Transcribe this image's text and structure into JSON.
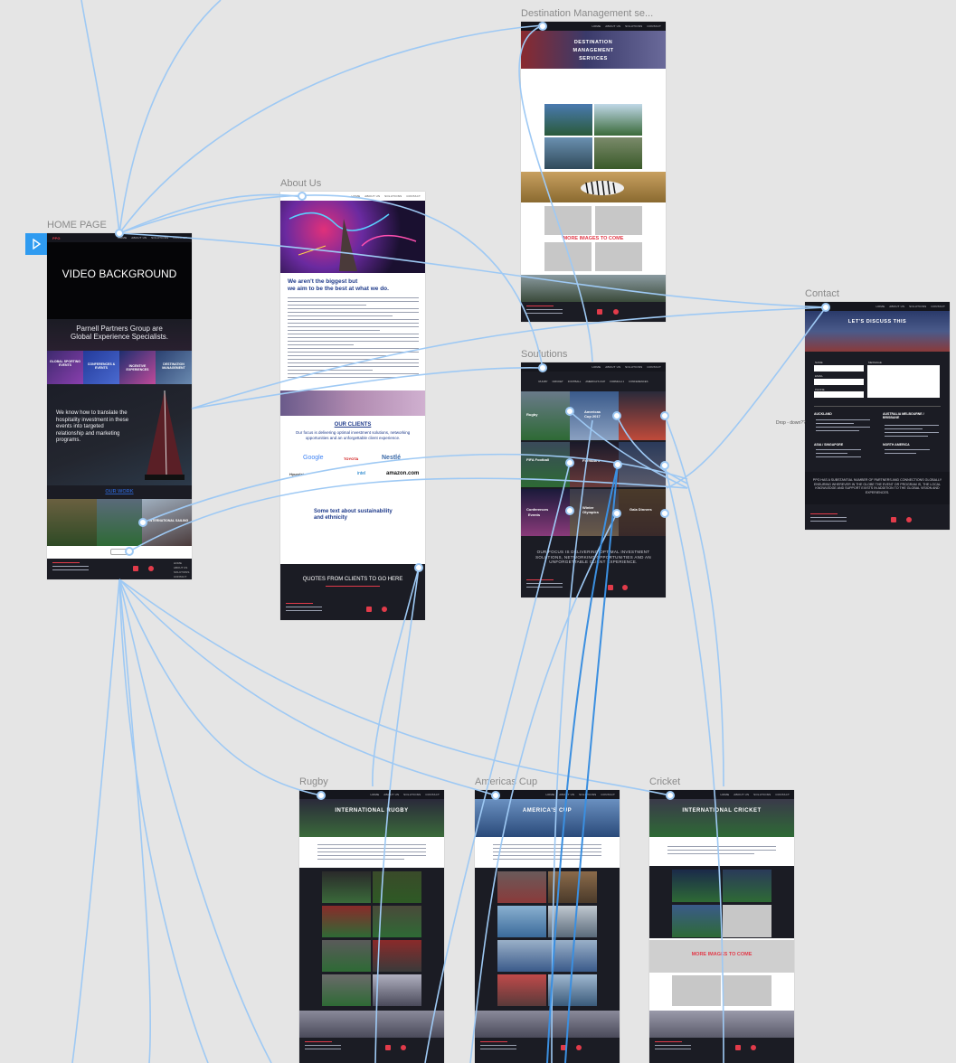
{
  "artboards": {
    "home": "HOME PAGE",
    "about": "About Us",
    "destination": "Destination Management se...",
    "solutions": "Soulutions",
    "contact": "Contact",
    "rugby": "Rugby",
    "americas": "Americas Cup",
    "cricket": "Cricket"
  },
  "nav": [
    "HOME",
    "ABOUT US",
    "SOLUTIONS",
    "CONTACT"
  ],
  "home": {
    "video": "VIDEO BACKGROUND",
    "tagline1": "Parnell Partners Group are",
    "tagline2": "Global Experience Specialists.",
    "tiles": [
      "GLOBAL SPORTING EVENTS",
      "CONFERENCES & EVENTS",
      "INCENTIVE EXPERIENCES",
      "DESTINATION MANAGEMENT"
    ],
    "translate": "We know how to translate the hospitality investment in these events into targeted relationship and marketing programs.",
    "our_work": "OUR WORK",
    "work_caption": "INTERNATIONAL SAILING"
  },
  "about": {
    "heading1": "We aren't the biggest but",
    "heading2": "we aim to be the best at what we do.",
    "clients_title": "OUR CLIENTS",
    "clients_sub": "Our focus is delivering optimal investment solutions, networking opportunities and an unforgettable client experience.",
    "logos": [
      "Google",
      "TOYOTA",
      "Nestlé",
      "Hyundai",
      "intel",
      "amazon.com"
    ],
    "sustain1": "Some text about sustainability",
    "sustain2": "and ethnicity",
    "quotes": "QUOTES FROM CLIENTS TO GO HERE"
  },
  "destination": {
    "hero": "DESTINATION MANAGEMENT SERVICES",
    "more": "MORE IMAGES TO COME"
  },
  "solutions": {
    "tabs": [
      "RUGBY",
      "CRICKET",
      "FOOTBALL",
      "AMERICA'S CUP",
      "FORMULA 1",
      "CONFERENCES"
    ],
    "tiles": [
      "Rugby",
      "Americas Cup 2017",
      "FIFA Football",
      "Formula 1",
      "Conferences",
      "Events",
      "Winter Olympics",
      "Gala Dinners"
    ],
    "focus": "OUR FOCUS IS DELIVERING OPTIMAL INVESTMENT SOLUTIONS, NETWORKING OPPORTUNITIES AND AN UNFORGETTABLE CLIENT EXPERIENCE."
  },
  "contact": {
    "hero": "LET'S DISCUSS THIS",
    "fields": [
      "NAME",
      "EMAIL",
      "PHONE"
    ],
    "message": "MESSAGE",
    "offices": [
      "AUCKLAND",
      "AUSTRALIA MELBOURNE / BRISBANE",
      "ASIA / SINGAPORE",
      "NORTH AMERICA"
    ],
    "partners": "PPG HAS A SUBSTANTIAL NUMBER OF PARTNERS AND CONNECTIONS GLOBALLY ENSURING WHEREVER IN THE GLOBE THE EVENT OR PROGRAM IS, THE LOCAL KNOWLEDGE AND SUPPORT EXISTS IN ADDITION TO THE GLOBAL VISION AND EXPERIENCES.",
    "note": "Drop - down??"
  },
  "rugby": {
    "hero": "INTERNATIONAL RUGBY"
  },
  "americas": {
    "hero": "AMERICA'S CUP"
  },
  "cricket": {
    "hero": "INTERNATIONAL CRICKET",
    "more": "MORE IMAGES TO COME"
  },
  "footer_links": [
    "HOME",
    "ABOUT US",
    "SOLUTIONS",
    "CONTACT"
  ],
  "colors": {
    "accent": "#e23b4a",
    "dark": "#1b1c24",
    "wire": "#9ec9f4",
    "wire_strong": "#3b8fe0",
    "canvas": "#e5e5e5"
  },
  "icons": {
    "play": "play-icon",
    "linkedin": "linkedin-icon",
    "instagram": "instagram-icon"
  }
}
